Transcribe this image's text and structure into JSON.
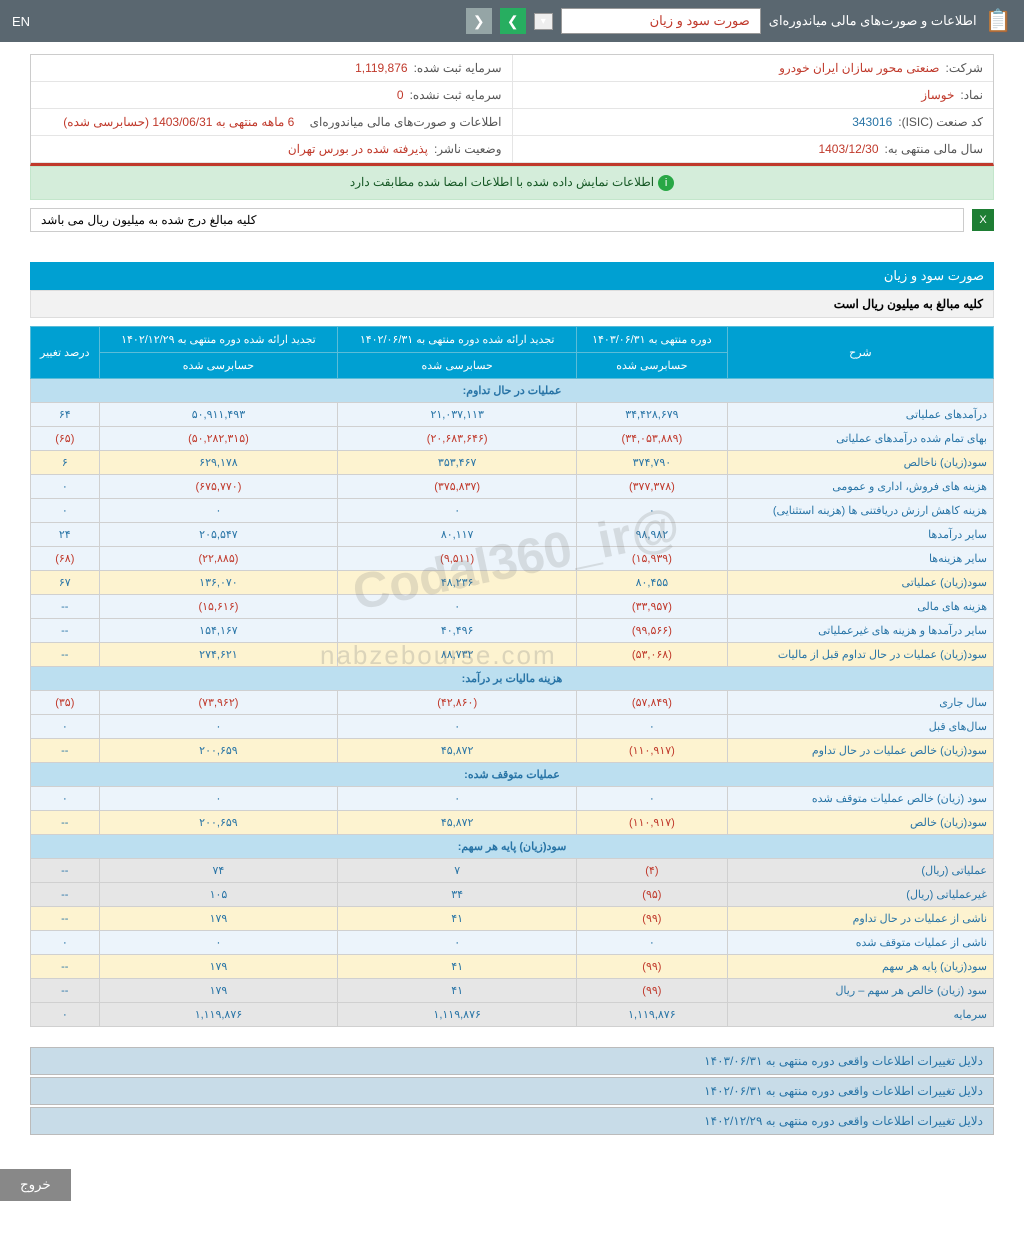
{
  "topbar": {
    "title": "اطلاعات و صورت‌های مالی میاندوره‌ای",
    "dropdown": "صورت سود و زیان",
    "lang": "EN"
  },
  "info": {
    "company_lbl": "شرکت:",
    "company": "صنعتی محور سازان ایران خودرو",
    "symbol_lbl": "نماد:",
    "symbol": "خوساز",
    "isic_lbl": "کد صنعت (ISIC):",
    "isic": "343016",
    "fyend_lbl": "سال مالی منتهی به:",
    "fyend": "1403/12/30",
    "cap_reg_lbl": "سرمایه ثبت شده:",
    "cap_reg": "1,119,876",
    "cap_unreg_lbl": "سرمایه ثبت نشده:",
    "cap_unreg": "0",
    "period_lbl": "اطلاعات و صورت‌های مالی میاندوره‌ای",
    "period": "6 ماهه منتهی به 1403/06/31 (حسابرسی شده)",
    "status_lbl": "وضعیت ناشر:",
    "status": "پذیرفته شده در بورس تهران"
  },
  "alert": "اطلاعات نمایش داده شده با اطلاعات امضا شده مطابقت دارد",
  "note": "کلیه مبالغ درج شده به میلیون ریال می باشد",
  "sec_title": "صورت سود و زیان",
  "sec_sub": "کلیه مبالغ به میلیون ریال است",
  "headers": {
    "desc": "شرح",
    "c1a": "دوره منتهی به ۱۴۰۳/۰۶/۳۱",
    "c1b": "حسابرسی شده",
    "c2a": "تجدید ارائه شده دوره منتهی به ۱۴۰۲/۰۶/۳۱",
    "c2b": "حسابرسی شده",
    "c3a": "تجدید ارائه شده دوره منتهی به ۱۴۰۲/۱۲/۲۹",
    "c3b": "حسابرسی شده",
    "c4": "درصد تغییر"
  },
  "groups": {
    "g1": "عملیات در حال تداوم:",
    "g2": "هزینه مالیات بر درآمد:",
    "g3": "عملیات متوقف شده:",
    "g4": "سود(زیان) پایه هر سهم:"
  },
  "rows": [
    {
      "cls": "r-blue",
      "d": "درآمدهای عملیاتی",
      "v": [
        "۳۴,۴۲۸,۶۷۹",
        "۲۱,۰۳۷,۱۱۳",
        "۵۰,۹۱۱,۴۹۳",
        "۶۴"
      ],
      "n": [
        0,
        0,
        0,
        0
      ]
    },
    {
      "cls": "r-blue",
      "d": "بهای تمام شده درآمدهای عملیاتی",
      "v": [
        "(۳۴,۰۵۳,۸۸۹)",
        "(۲۰,۶۸۳,۶۴۶)",
        "(۵۰,۲۸۲,۳۱۵)",
        "(۶۵)"
      ],
      "n": [
        1,
        1,
        1,
        1
      ]
    },
    {
      "cls": "r-yellow",
      "d": "سود(زیان) ناخالص",
      "v": [
        "۳۷۴,۷۹۰",
        "۳۵۳,۴۶۷",
        "۶۲۹,۱۷۸",
        "۶"
      ],
      "n": [
        0,
        0,
        0,
        0
      ]
    },
    {
      "cls": "r-blue",
      "d": "هزینه های فروش، اداری و عمومی",
      "v": [
        "(۳۷۷,۳۷۸)",
        "(۳۷۵,۸۳۷)",
        "(۶۷۵,۷۷۰)",
        "۰"
      ],
      "n": [
        1,
        1,
        1,
        0
      ]
    },
    {
      "cls": "r-blue",
      "d": "هزینه کاهش ارزش دریافتنی ها (هزینه استثنایی)",
      "v": [
        "۰",
        "۰",
        "۰",
        "۰"
      ],
      "n": [
        0,
        0,
        0,
        0
      ]
    },
    {
      "cls": "r-blue",
      "d": "سایر درآمدها",
      "v": [
        "۹۸,۹۸۲",
        "۸۰,۱۱۷",
        "۲۰۵,۵۴۷",
        "۲۴"
      ],
      "n": [
        0,
        0,
        0,
        0
      ]
    },
    {
      "cls": "r-blue",
      "d": "سایر هزینه‌ها",
      "v": [
        "(۱۵,۹۳۹)",
        "(۹,۵۱۱)",
        "(۲۲,۸۸۵)",
        "(۶۸)"
      ],
      "n": [
        1,
        1,
        1,
        1
      ]
    },
    {
      "cls": "r-yellow",
      "d": "سود(زیان) عملیاتی",
      "v": [
        "۸۰,۴۵۵",
        "۴۸,۲۳۶",
        "۱۳۶,۰۷۰",
        "۶۷"
      ],
      "n": [
        0,
        0,
        0,
        0
      ]
    },
    {
      "cls": "r-blue",
      "d": "هزینه های مالی",
      "v": [
        "(۳۳,۹۵۷)",
        "۰",
        "(۱۵,۶۱۶)",
        "--"
      ],
      "n": [
        1,
        0,
        1,
        0
      ]
    },
    {
      "cls": "r-blue",
      "d": "سایر درآمدها و هزینه های غیرعملیاتی",
      "v": [
        "(۹۹,۵۶۶)",
        "۴۰,۴۹۶",
        "۱۵۴,۱۶۷",
        "--"
      ],
      "n": [
        1,
        0,
        0,
        0
      ]
    },
    {
      "cls": "r-yellow",
      "d": "سود(زیان) عملیات در حال تداوم قبل از مالیات",
      "v": [
        "(۵۳,۰۶۸)",
        "۸۸,۷۳۲",
        "۲۷۴,۶۲۱",
        "--"
      ],
      "n": [
        1,
        0,
        0,
        0
      ]
    }
  ],
  "rows2": [
    {
      "cls": "r-blue",
      "d": "سال جاری",
      "v": [
        "(۵۷,۸۴۹)",
        "(۴۲,۸۶۰)",
        "(۷۳,۹۶۲)",
        "(۳۵)"
      ],
      "n": [
        1,
        1,
        1,
        1
      ]
    },
    {
      "cls": "r-blue",
      "d": "سال‌های قبل",
      "v": [
        "۰",
        "۰",
        "۰",
        "۰"
      ],
      "n": [
        0,
        0,
        0,
        0
      ]
    },
    {
      "cls": "r-yellow",
      "d": "سود(زیان) خالص عملیات در حال تداوم",
      "v": [
        "(۱۱۰,۹۱۷)",
        "۴۵,۸۷۲",
        "۲۰۰,۶۵۹",
        "--"
      ],
      "n": [
        1,
        0,
        0,
        0
      ]
    }
  ],
  "rows3": [
    {
      "cls": "r-blue",
      "d": "سود (زیان) خالص عملیات متوقف شده",
      "v": [
        "۰",
        "۰",
        "۰",
        "۰"
      ],
      "n": [
        0,
        0,
        0,
        0
      ]
    },
    {
      "cls": "r-yellow",
      "d": "سود(زیان) خالص",
      "v": [
        "(۱۱۰,۹۱۷)",
        "۴۵,۸۷۲",
        "۲۰۰,۶۵۹",
        "--"
      ],
      "n": [
        1,
        0,
        0,
        0
      ]
    }
  ],
  "rows4": [
    {
      "cls": "r-gray",
      "d": "عملیاتی (ریال)",
      "v": [
        "(۴)",
        "۷",
        "۷۴",
        "--"
      ],
      "n": [
        1,
        0,
        0,
        0
      ]
    },
    {
      "cls": "r-gray",
      "d": "غیرعملیاتی (ریال)",
      "v": [
        "(۹۵)",
        "۳۴",
        "۱۰۵",
        "--"
      ],
      "n": [
        1,
        0,
        0,
        0
      ]
    },
    {
      "cls": "r-yellow",
      "d": "ناشی از عملیات در حال تداوم",
      "v": [
        "(۹۹)",
        "۴۱",
        "۱۷۹",
        "--"
      ],
      "n": [
        1,
        0,
        0,
        0
      ]
    },
    {
      "cls": "r-blue",
      "d": "ناشی از عملیات متوقف شده",
      "v": [
        "۰",
        "۰",
        "۰",
        "۰"
      ],
      "n": [
        0,
        0,
        0,
        0
      ]
    },
    {
      "cls": "r-yellow",
      "d": "سود(زیان) پایه هر سهم",
      "v": [
        "(۹۹)",
        "۴۱",
        "۱۷۹",
        "--"
      ],
      "n": [
        1,
        0,
        0,
        0
      ]
    },
    {
      "cls": "r-gray",
      "d": "سود (زیان) خالص هر سهم – ریال",
      "v": [
        "(۹۹)",
        "۴۱",
        "۱۷۹",
        "--"
      ],
      "n": [
        1,
        0,
        0,
        0
      ]
    },
    {
      "cls": "r-gray",
      "d": "سرمایه",
      "v": [
        "۱,۱۱۹,۸۷۶",
        "۱,۱۱۹,۸۷۶",
        "۱,۱۱۹,۸۷۶",
        "۰"
      ],
      "n": [
        0,
        0,
        0,
        0
      ]
    }
  ],
  "reasons": [
    "دلایل تغییرات اطلاعات واقعی دوره منتهی به ۱۴۰۳/۰۶/۳۱",
    "دلایل تغییرات اطلاعات واقعی دوره منتهی به ۱۴۰۲/۰۶/۳۱",
    "دلایل تغییرات اطلاعات واقعی دوره منتهی به ۱۴۰۲/۱۲/۲۹"
  ],
  "exit": "خروج",
  "wm1": "@Codal360_ir",
  "wm2": "nabzebourse.com"
}
